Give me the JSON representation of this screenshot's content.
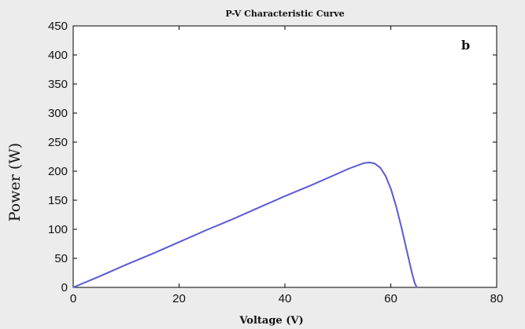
{
  "chart_data": {
    "type": "line",
    "title": "P-V Characteristic Curve",
    "xlabel": "Voltage (V)",
    "ylabel": "Power (W)",
    "annotation": "b",
    "xlim": [
      0,
      80
    ],
    "ylim": [
      0,
      450
    ],
    "xticks": [
      "0",
      "20",
      "40",
      "60",
      "80"
    ],
    "yticks": [
      "0",
      "50",
      "100",
      "150",
      "200",
      "250",
      "300",
      "350",
      "400",
      "450"
    ],
    "grid": false,
    "colors": {
      "line": "#5a5ad6",
      "axes": "#000000",
      "plot_bg": "#ffffff"
    },
    "series": [
      {
        "x": [
          0,
          5,
          10,
          15,
          20,
          25,
          30,
          35,
          40,
          45,
          50,
          52,
          54,
          55,
          56,
          57,
          58,
          59,
          60,
          61,
          62,
          63,
          64,
          64.5,
          64.9
        ],
        "y": [
          0,
          19,
          39,
          58,
          78,
          98,
          117,
          137,
          157,
          176,
          196,
          204,
          211,
          214,
          215,
          213,
          206,
          192,
          170,
          140,
          104,
          64,
          25,
          8,
          0
        ]
      }
    ]
  }
}
